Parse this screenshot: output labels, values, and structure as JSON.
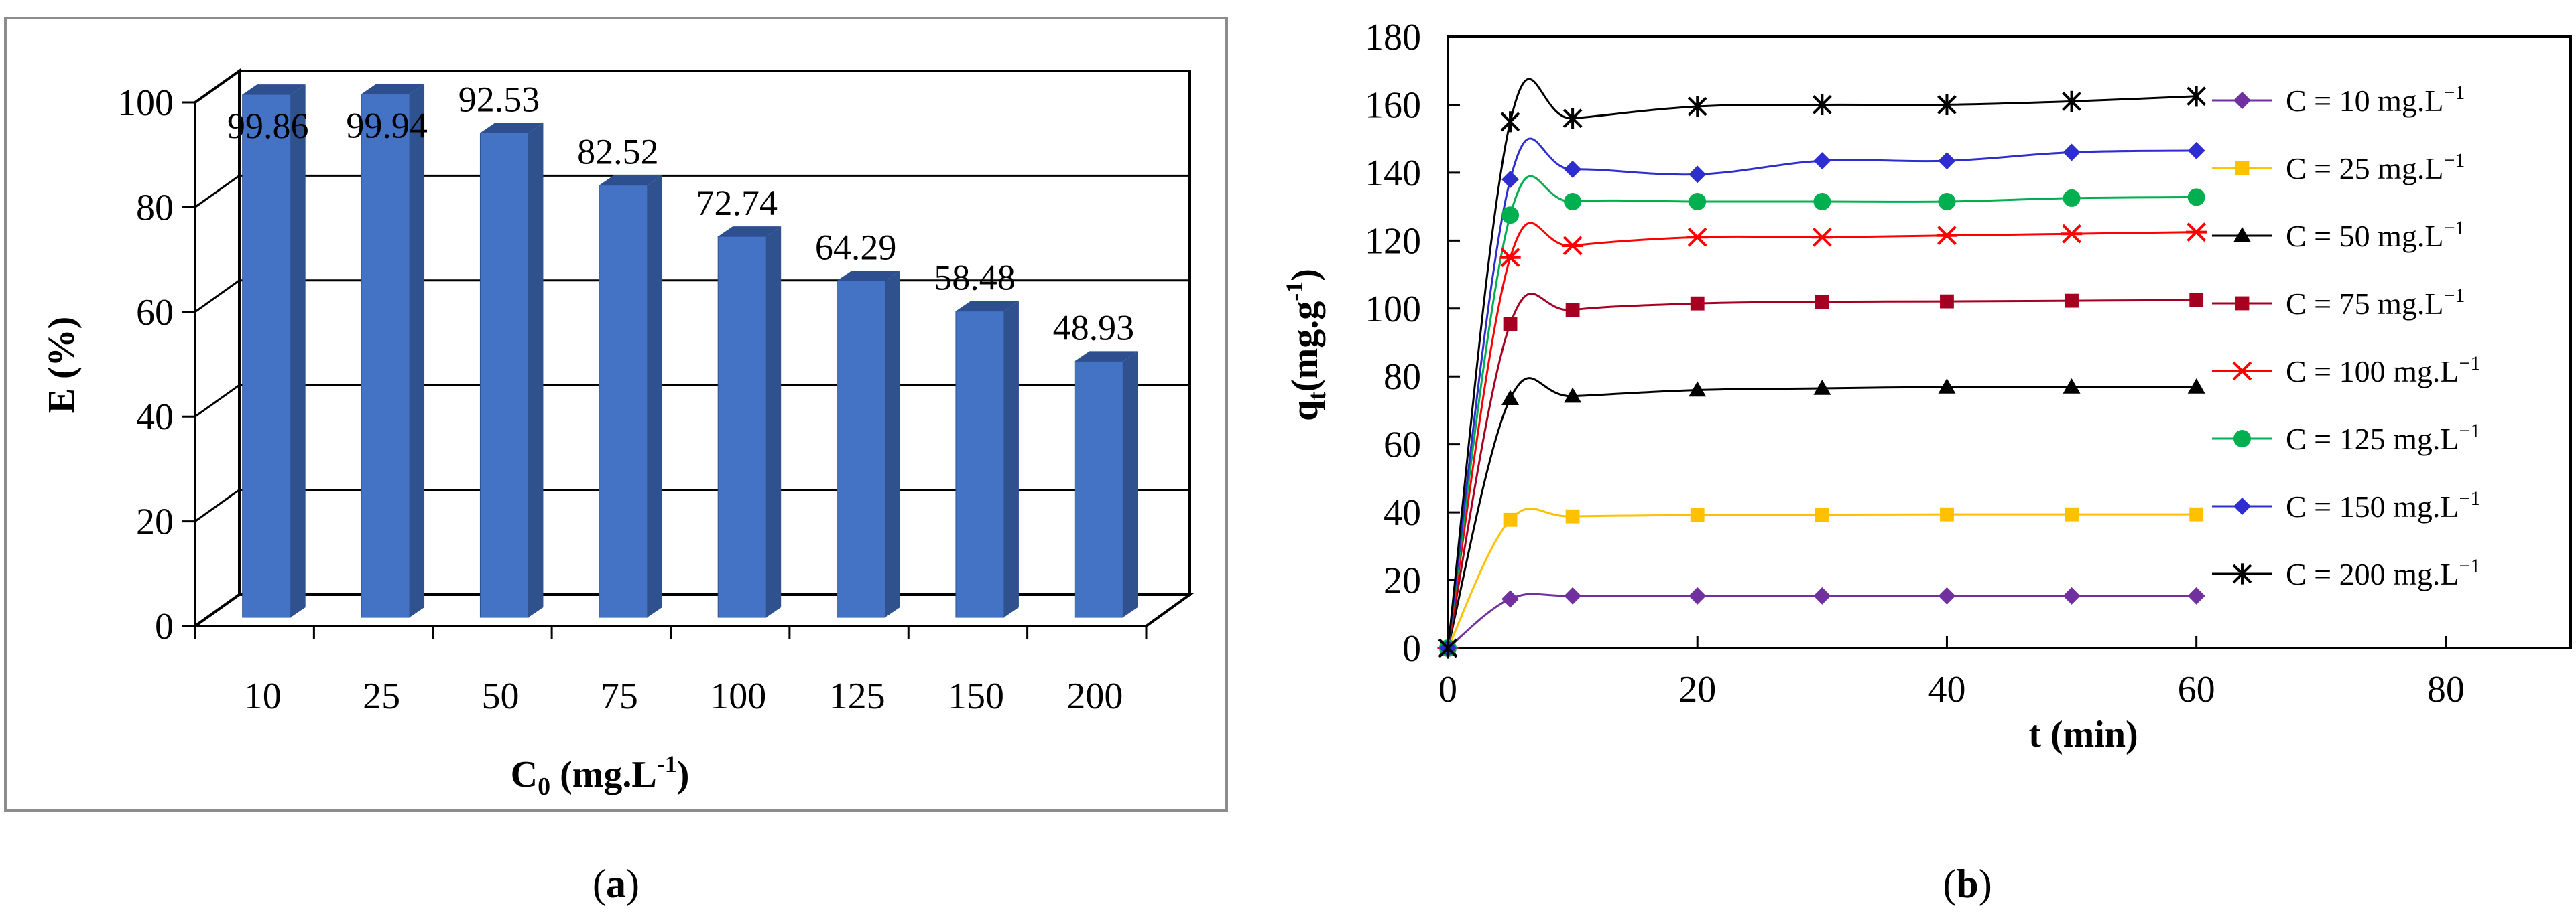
{
  "chart_data": [
    {
      "type": "bar",
      "panel_label": "(a)",
      "panel_letter": "a",
      "xlabel_main": "C",
      "xlabel_sub": "0",
      "xlabel_rest": " (mg.L",
      "xlabel_sup": "-1",
      "xlabel_close": ")",
      "ylabel": "E (%)",
      "ylim": [
        0,
        100
      ],
      "yticks": [
        "0",
        "20",
        "40",
        "60",
        "80",
        "100"
      ],
      "categories": [
        "10",
        "25",
        "50",
        "75",
        "100",
        "125",
        "150",
        "200"
      ],
      "values": [
        99.86,
        99.94,
        92.53,
        82.52,
        72.74,
        64.29,
        58.48,
        48.93
      ],
      "value_labels": [
        "99.86",
        "99.94",
        "92.53",
        "82.52",
        "72.74",
        "64.29",
        "58.48",
        "48.93"
      ],
      "bar_color": "#4472C4",
      "bar_side_color": "#2F528F",
      "bar_top_color": "#2E4F8F"
    },
    {
      "type": "line",
      "panel_label": "(b)",
      "panel_letter": "b",
      "xlabel": "t (min)",
      "ylabel_main": "q",
      "ylabel_sub": "t",
      "ylabel_rest": "(mg.g",
      "ylabel_sup": "-1",
      "ylabel_close": ")",
      "xlim": [
        0,
        90
      ],
      "ylim": [
        0,
        180
      ],
      "xticks": [
        "0",
        "20",
        "40",
        "60",
        "80"
      ],
      "yticks": [
        "0",
        "20",
        "40",
        "60",
        "80",
        "100",
        "120",
        "140",
        "160",
        "180"
      ],
      "x": [
        0,
        5,
        10,
        20,
        30,
        40,
        50,
        60
      ],
      "series": [
        {
          "name": "C = 10 mg.L",
          "sup": "−1",
          "color": "#7030A0",
          "marker": "diamond",
          "values": [
            0,
            14.5,
            15.4,
            15.4,
            15.4,
            15.4,
            15.4,
            15.4
          ]
        },
        {
          "name": "C = 25 mg.L",
          "sup": "−1",
          "color": "#FFC000",
          "marker": "square",
          "values": [
            0,
            37.8,
            38.8,
            39.2,
            39.3,
            39.4,
            39.4,
            39.4
          ]
        },
        {
          "name": "C = 50 mg.L",
          "sup": "−1",
          "color": "#000000",
          "marker": "triangle",
          "values": [
            0,
            73.5,
            74.2,
            76.0,
            76.5,
            76.9,
            76.9,
            76.9
          ]
        },
        {
          "name": "C = 75 mg.L",
          "sup": "−1",
          "color": "#A50021",
          "marker": "square",
          "values": [
            0,
            95.5,
            99.6,
            101.5,
            102.0,
            102.1,
            102.3,
            102.5
          ]
        },
        {
          "name": "C = 100 mg.L",
          "sup": "−1",
          "color": "#FF0000",
          "marker": "asterisk",
          "values": [
            0,
            115.0,
            118.5,
            121.0,
            121.0,
            121.5,
            122.0,
            122.5
          ]
        },
        {
          "name": "C = 125 mg.L",
          "sup": "−1",
          "color": "#00B050",
          "marker": "circle",
          "values": [
            0,
            127.5,
            131.5,
            131.5,
            131.5,
            131.5,
            132.5,
            132.8
          ]
        },
        {
          "name": "C = 150 mg.L",
          "sup": "−1",
          "color": "#2E2ED0",
          "marker": "diamond",
          "values": [
            0,
            138.0,
            141.0,
            139.5,
            143.5,
            143.5,
            146.0,
            146.5
          ]
        },
        {
          "name": "C = 200 mg.L",
          "sup": "−1",
          "color": "#000000",
          "marker": "star",
          "values": [
            0,
            155.0,
            156.0,
            159.5,
            160.0,
            160.0,
            161.0,
            162.5
          ]
        }
      ]
    }
  ]
}
